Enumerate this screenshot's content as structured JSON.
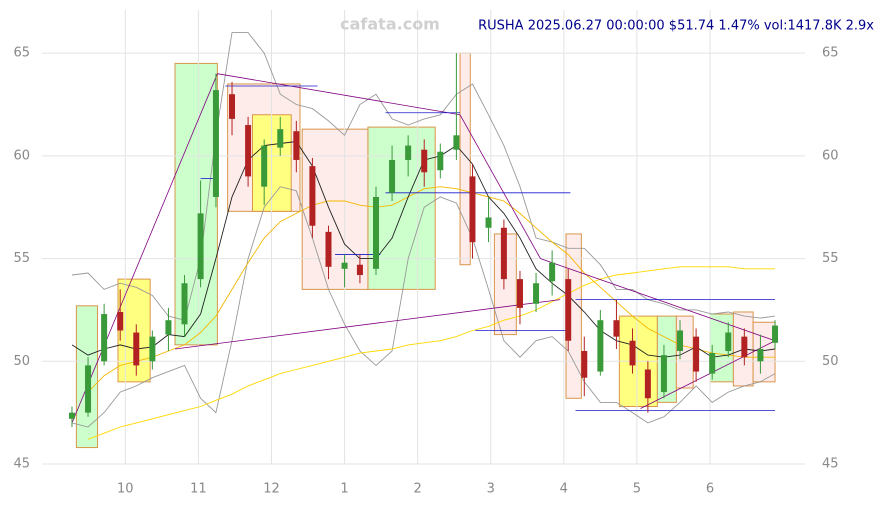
{
  "chart_data": {
    "type": "candlestick",
    "title": "RUSHA 2025.06.27 00:00:00 $51.74 1.47% vol:1417.8K 2.9x",
    "watermark": "cafata.com",
    "x": [
      9.27,
      9.49,
      9.71,
      9.93,
      10.15,
      10.37,
      10.59,
      10.81,
      11.03,
      11.24,
      11.46,
      11.68,
      11.9,
      12.12,
      12.34,
      12.56,
      12.78,
      13.0,
      13.21,
      13.43,
      13.65,
      13.87,
      14.09,
      14.31,
      14.53,
      14.75,
      14.97,
      15.18,
      15.4,
      15.62,
      15.84,
      16.06,
      16.28,
      16.5,
      16.72,
      16.94,
      17.15,
      17.37,
      17.59,
      17.81,
      18.03,
      18.25,
      18.47,
      18.69,
      18.89
    ],
    "open": [
      47.2,
      47.5,
      50,
      52.4,
      51.4,
      50,
      51.3,
      51.8,
      54,
      58,
      63,
      61.5,
      58.5,
      60.4,
      61.2,
      59.5,
      56.3,
      54.5,
      54.7,
      54.5,
      58.2,
      59.8,
      60.3,
      59.3,
      60.3,
      59,
      56.5,
      56.5,
      54,
      52.8,
      53.9,
      54,
      50.5,
      49.5,
      52,
      51,
      49.6,
      48.5,
      50.5,
      51.2,
      49.4,
      50.5,
      51.2,
      50,
      50.9
    ],
    "high": [
      47.8,
      50.2,
      52.8,
      53.5,
      51.8,
      51.5,
      52.6,
      54.2,
      58.8,
      64,
      63.6,
      61.9,
      60.8,
      61.9,
      61.7,
      59.9,
      56.6,
      55.2,
      55.2,
      58.5,
      60.5,
      61,
      60.8,
      60.6,
      65,
      59.6,
      58,
      56.9,
      54.4,
      54.3,
      55.4,
      54.5,
      51.2,
      52.5,
      53,
      51.6,
      50,
      50.8,
      52,
      51.6,
      50.8,
      51.9,
      51.6,
      51.3,
      52
    ],
    "low": [
      46.8,
      47.3,
      49.8,
      51,
      49.3,
      49.6,
      50.5,
      51.2,
      53.6,
      57.5,
      61,
      58.5,
      57.6,
      60,
      59.2,
      56,
      54,
      53.6,
      53.8,
      54.2,
      57.8,
      59,
      58.5,
      58.9,
      59.8,
      55,
      55.8,
      53.5,
      51.8,
      52.4,
      53.2,
      50.5,
      48.3,
      49.3,
      50.6,
      49.4,
      47.5,
      48.2,
      50.1,
      49,
      49.1,
      50.2,
      49.8,
      49.4,
      50.6
    ],
    "close": [
      47.5,
      49.8,
      52.3,
      51.5,
      49.8,
      51.2,
      52,
      53.8,
      57.2,
      63.2,
      61.8,
      59,
      60.5,
      61.3,
      59.8,
      56.6,
      54.6,
      54.8,
      54.2,
      58,
      59.8,
      60.5,
      59.2,
      60.2,
      61,
      55.8,
      57,
      54,
      52.6,
      53.8,
      54.8,
      51,
      49.2,
      52,
      51.2,
      49.8,
      48.2,
      50.3,
      51.5,
      49.5,
      50.4,
      51.4,
      50.2,
      50.6,
      51.74
    ],
    "up_color": "#3a9a3a",
    "down_color": "#b22222",
    "overlays": [
      {
        "color": "#999999",
        "values": [
          54.2,
          54.3,
          53.5,
          53.8,
          53.6,
          53.2,
          52.2,
          52,
          55,
          61,
          66,
          66,
          65,
          63,
          62.5,
          62.3,
          61.7,
          61,
          62.5,
          63,
          61.8,
          61.5,
          61.8,
          62,
          63,
          63.5,
          62,
          60.5,
          58.5,
          56,
          55.8,
          55.5,
          55.5,
          54.7,
          53.5,
          53.5,
          53,
          52.8,
          52.5,
          52.5,
          52.3,
          52.4,
          52.2,
          52.1,
          52.2
        ]
      },
      {
        "color": "#999999",
        "values": [
          47,
          46.8,
          47.5,
          48.5,
          48.8,
          49.2,
          49.5,
          49.8,
          48.2,
          47.5,
          51,
          55,
          57.5,
          58.5,
          58.3,
          56,
          53.5,
          51.8,
          50.5,
          49.8,
          50.5,
          55,
          57.5,
          58,
          57.7,
          56,
          53.5,
          51,
          50.2,
          51,
          51.2,
          50.5,
          49,
          48,
          48,
          47.5,
          47,
          47.3,
          48,
          48.8,
          48,
          48.5,
          48.8,
          49,
          49.4
        ]
      },
      {
        "color": "#f5b800",
        "values": [
          null,
          48.5,
          49.3,
          49.8,
          50,
          50.2,
          50.5,
          50.8,
          51.4,
          52.2,
          53.5,
          54.8,
          56,
          56.8,
          57.2,
          57.6,
          57.8,
          57.8,
          57.6,
          57.5,
          57.6,
          58,
          58.4,
          58.5,
          58.4,
          58.2,
          58,
          57.8,
          57.2,
          56.5,
          55.8,
          55.2,
          54.3,
          53.6,
          52.9,
          52.2,
          51.6,
          51.2,
          50.8,
          50.6,
          50.4,
          50.3,
          50.2,
          50.2,
          50.2
        ]
      },
      {
        "color": "#ffd700",
        "values": [
          null,
          46.2,
          46.5,
          46.8,
          47,
          47.2,
          47.4,
          47.6,
          47.8,
          48.1,
          48.4,
          48.8,
          49.1,
          49.4,
          49.6,
          49.8,
          50,
          50.2,
          50.4,
          50.5,
          50.6,
          50.8,
          50.9,
          51,
          51.2,
          51.5,
          51.7,
          52,
          52.2,
          52.5,
          52.9,
          53.3,
          53.7,
          54,
          54.2,
          54.3,
          54.4,
          54.5,
          54.6,
          54.6,
          54.6,
          54.6,
          54.5,
          54.5,
          54.5
        ]
      },
      {
        "color": "#222222",
        "values": [
          50.8,
          50.3,
          50.6,
          50.8,
          50.6,
          50.7,
          51.3,
          51.2,
          52.3,
          55,
          58,
          59.8,
          60.5,
          60.6,
          60.7,
          59.5,
          57.5,
          55.7,
          55,
          55,
          56,
          58,
          59.8,
          60,
          60.5,
          59.6,
          58,
          57.2,
          56,
          54.5,
          53.8,
          53.2,
          52.4,
          51.5,
          51,
          50.8,
          50.3,
          50.2,
          50.3,
          50.7,
          50.2,
          50.3,
          50.6,
          50.5,
          50.6
        ]
      }
    ],
    "boxes": [
      {
        "x": [
          9.33,
          9.62
        ],
        "y": [
          45.8,
          52.7
        ],
        "color": "#ccffcc"
      },
      {
        "x": [
          9.9,
          10.34
        ],
        "y": [
          49,
          54
        ],
        "color": "#ffff80"
      },
      {
        "x": [
          10.68,
          11.26
        ],
        "y": [
          50.8,
          64.5
        ],
        "color": "#ccffcc"
      },
      {
        "x": [
          11.4,
          12.39
        ],
        "y": [
          57.3,
          63.5
        ],
        "color": "#fdecea"
      },
      {
        "x": [
          11.74,
          12.27
        ],
        "y": [
          57.3,
          62
        ],
        "color": "#ffff80"
      },
      {
        "x": [
          12.42,
          13.32
        ],
        "y": [
          53.5,
          61.3
        ],
        "color": "#fdecea"
      },
      {
        "x": [
          13.32,
          14.24
        ],
        "y": [
          53.5,
          61.4
        ],
        "color": "#ccffcc"
      },
      {
        "x": [
          14.58,
          14.72
        ],
        "y": [
          54.7,
          65
        ],
        "color": "#fdecea"
      },
      {
        "x": [
          15.05,
          15.35
        ],
        "y": [
          51.3,
          56.2
        ],
        "color": "#fdecea"
      },
      {
        "x": [
          16.03,
          16.24
        ],
        "y": [
          48.2,
          56.2
        ],
        "color": "#fdecea"
      },
      {
        "x": [
          16.76,
          17.28
        ],
        "y": [
          47.8,
          52.2
        ],
        "color": "#ffff80"
      },
      {
        "x": [
          17.28,
          17.54
        ],
        "y": [
          48,
          52.2
        ],
        "color": "#ccffcc"
      },
      {
        "x": [
          17.54,
          17.77
        ],
        "y": [
          48.7,
          52.2
        ],
        "color": "#fdecea"
      },
      {
        "x": [
          18.0,
          18.32
        ],
        "y": [
          49,
          52.3
        ],
        "color": "#ccffcc"
      },
      {
        "x": [
          18.32,
          18.59
        ],
        "y": [
          48.8,
          52.4
        ],
        "color": "#fdecea"
      },
      {
        "x": [
          18.59,
          18.89
        ],
        "y": [
          49,
          51.9
        ],
        "color": "#fdecea"
      }
    ],
    "box_edge_color": "#d9954a",
    "trendlines": [
      {
        "x": [
          9.27,
          11.26
        ],
        "y": [
          47,
          64
        ]
      },
      {
        "x": [
          11.26,
          14.58
        ],
        "y": [
          64,
          62
        ]
      },
      {
        "x": [
          14.58,
          15.68
        ],
        "y": [
          62,
          55
        ]
      },
      {
        "x": [
          15.68,
          18.89
        ],
        "y": [
          55,
          51
        ]
      },
      {
        "x": [
          10.68,
          15.95
        ],
        "y": [
          50.6,
          53
        ]
      },
      {
        "x": [
          17.05,
          18.89
        ],
        "y": [
          47.7,
          51
        ]
      }
    ],
    "trend_color": "#800080",
    "levels": [
      {
        "x": [
          13.56,
          14.58
        ],
        "y": 62.1
      },
      {
        "x": [
          13.56,
          16.09
        ],
        "y": 58.2
      },
      {
        "x": [
          11.37,
          12.63
        ],
        "y": 63.4
      },
      {
        "x": [
          16.16,
          18.89
        ],
        "y": 47.6
      },
      {
        "x": [
          14.79,
          16.09
        ],
        "y": 51.5
      },
      {
        "x": [
          16.16,
          18.89
        ],
        "y": 53
      },
      {
        "x": [
          12.87,
          13.49
        ],
        "y": 55.2
      },
      {
        "x": [
          11.03,
          11.23
        ],
        "y": 58.9
      }
    ],
    "level_color": "#1a1acc",
    "xlim": [
      8.86,
      19.3
    ],
    "ylim": [
      45,
      67.1
    ],
    "xticks": [
      10,
      11,
      12,
      {
        "value": 13,
        "label": "1"
      },
      {
        "value": 14,
        "label": "2"
      },
      {
        "value": 15,
        "label": "3"
      },
      {
        "value": 16,
        "label": "4"
      },
      {
        "value": 17,
        "label": "5"
      },
      {
        "value": 18,
        "label": "6"
      }
    ],
    "yticks": [
      45,
      50,
      55,
      60,
      65
    ],
    "grid": true
  }
}
